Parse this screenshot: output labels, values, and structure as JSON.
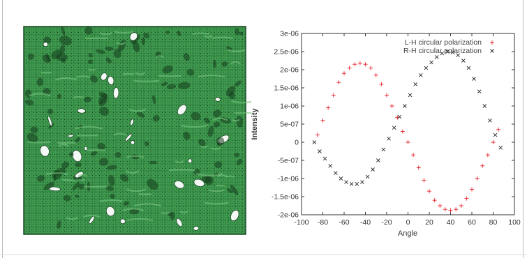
{
  "figure": {
    "left_panel": {
      "image_name": "green-porous-mesh-surface"
    }
  },
  "chart_data": {
    "type": "scatter",
    "xlabel": "Angle",
    "ylabel": "Intensity",
    "xlim": [
      -100,
      100
    ],
    "ylim": [
      -2e-06,
      3e-06
    ],
    "xticks": [
      "-100",
      "-80",
      "-60",
      "-40",
      "-20",
      "0",
      "20",
      "40",
      "60",
      "80",
      "100"
    ],
    "xtick_values": [
      -100,
      -80,
      -60,
      -40,
      -20,
      0,
      20,
      40,
      60,
      80,
      100
    ],
    "yticks": [
      "-2e-06",
      "-1.5e-06",
      "-1e-06",
      "-5e-07",
      "0",
      "5e-07",
      "1e-06",
      "1.5e-06",
      "2e-06",
      "2.5e-06",
      "3e-06"
    ],
    "ytick_values": [
      -2e-06,
      -1.5e-06,
      -1e-06,
      -5e-07,
      0,
      5e-07,
      1e-06,
      1.5e-06,
      2e-06,
      2.5e-06,
      3e-06
    ],
    "grid": false,
    "legend_position": "top-right",
    "series": [
      {
        "name": "L-H circular polarization",
        "marker": "+",
        "color": "#e8202a",
        "x": [
          -85,
          -80,
          -75,
          -70,
          -65,
          -60,
          -55,
          -50,
          -45,
          -40,
          -35,
          -30,
          -25,
          -20,
          -15,
          -10,
          -5,
          0,
          5,
          10,
          15,
          20,
          25,
          30,
          35,
          40,
          45,
          50,
          55,
          60,
          65,
          70,
          75,
          80,
          85
        ],
        "y": [
          2e-07,
          6e-07,
          9.5e-07,
          1.3e-06,
          1.65e-06,
          1.9e-06,
          2.05e-06,
          2.15e-06,
          2.18e-06,
          2.15e-06,
          2.05e-06,
          1.85e-06,
          1.6e-06,
          1.3e-06,
          1e-06,
          6.8e-07,
          3e-07,
          0,
          -3.5e-07,
          -7e-07,
          -1.05e-06,
          -1.35e-06,
          -1.6e-06,
          -1.75e-06,
          -1.85e-06,
          -1.88e-06,
          -1.85e-06,
          -1.75e-06,
          -1.55e-06,
          -1.3e-06,
          -1e-06,
          -6.5e-07,
          -3.5e-07,
          0,
          3.5e-07
        ]
      },
      {
        "name": "R-H circular polarization",
        "marker": "x",
        "color": "#2a2a2a",
        "x": [
          -88,
          -83,
          -78,
          -73,
          -68,
          -63,
          -58,
          -53,
          -48,
          -43,
          -38,
          -33,
          -28,
          -23,
          -18,
          -13,
          -8,
          -3,
          2,
          7,
          12,
          17,
          22,
          27,
          32,
          37,
          42,
          47,
          52,
          57,
          62,
          67,
          72,
          77,
          82,
          87
        ],
        "y": [
          0,
          -2.5e-07,
          -4.5e-07,
          -6.5e-07,
          -8.5e-07,
          -1e-06,
          -1.1e-06,
          -1.15e-06,
          -1.15e-06,
          -1.1e-06,
          -9.5e-07,
          -7.5e-07,
          -5e-07,
          -2e-07,
          1e-07,
          4e-07,
          7e-07,
          1e-06,
          1.3e-06,
          1.6e-06,
          1.85e-06,
          2.05e-06,
          2.2e-06,
          2.35e-06,
          2.45e-06,
          2.5e-06,
          2.48e-06,
          2.4e-06,
          2.25e-06,
          2.05e-06,
          1.75e-06,
          1.4e-06,
          1e-06,
          6e-07,
          2e-07,
          -1.5e-07
        ]
      }
    ]
  }
}
